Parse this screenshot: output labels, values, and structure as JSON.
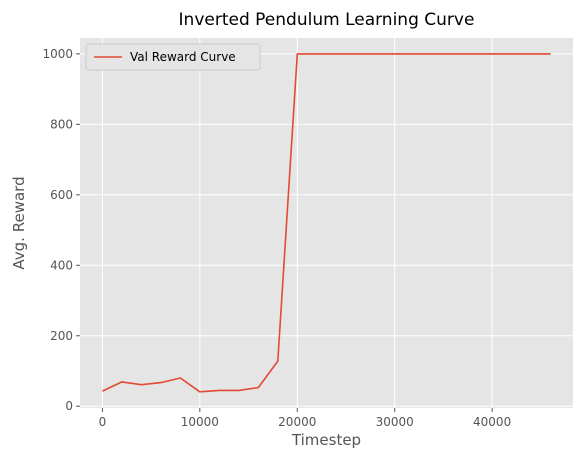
{
  "chart_data": {
    "type": "line",
    "title": "Inverted Pendulum Learning Curve",
    "xlabel": "Timestep",
    "ylabel": "Avg. Reward",
    "xlim": [
      -2300,
      48300
    ],
    "ylim": [
      -5,
      1045
    ],
    "xticks": [
      0,
      10000,
      20000,
      30000,
      40000
    ],
    "xtick_labels": [
      "0",
      "10000",
      "20000",
      "30000",
      "40000"
    ],
    "yticks": [
      0,
      200,
      400,
      600,
      800,
      1000
    ],
    "ytick_labels": [
      "0",
      "200",
      "400",
      "600",
      "800",
      "1000"
    ],
    "grid": true,
    "legend_position": "upper-left",
    "style": {
      "background": "#e5e5e5",
      "line_color": "#e24a33",
      "grid_color": "#ffffff"
    },
    "series": [
      {
        "name": "Val Reward Curve",
        "x": [
          0,
          2000,
          4000,
          6000,
          8000,
          10000,
          12000,
          14000,
          16000,
          18000,
          20000,
          22000,
          24000,
          26000,
          28000,
          30000,
          32000,
          34000,
          36000,
          38000,
          40000,
          42000,
          44000,
          46000
        ],
        "y": [
          43,
          69,
          61,
          67,
          80,
          41,
          45,
          45,
          53,
          128,
          1000,
          1000,
          1000,
          1000,
          1000,
          1000,
          1000,
          1000,
          1000,
          1000,
          1000,
          1000,
          1000,
          1000
        ]
      }
    ]
  }
}
